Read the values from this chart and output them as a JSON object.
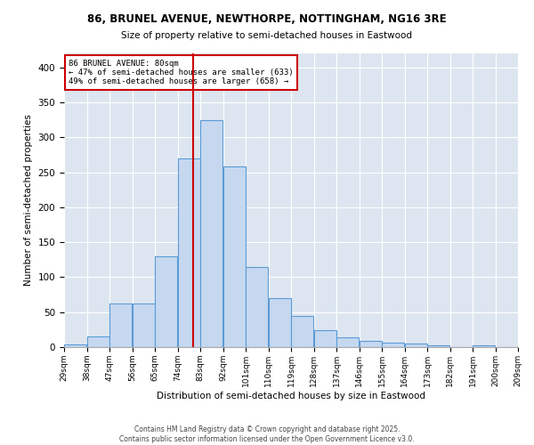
{
  "title_line1": "86, BRUNEL AVENUE, NEWTHORPE, NOTTINGHAM, NG16 3RE",
  "title_line2": "Size of property relative to semi-detached houses in Eastwood",
  "xlabel": "Distribution of semi-detached houses by size in Eastwood",
  "ylabel": "Number of semi-detached properties",
  "footer_line1": "Contains HM Land Registry data © Crown copyright and database right 2025.",
  "footer_line2": "Contains public sector information licensed under the Open Government Licence v3.0.",
  "annotation_title": "86 BRUNEL AVENUE: 80sqm",
  "annotation_line1": "← 47% of semi-detached houses are smaller (633)",
  "annotation_line2": "49% of semi-detached houses are larger (658) →",
  "property_size": 80,
  "bin_edges": [
    29,
    38,
    47,
    56,
    65,
    74,
    83,
    92,
    101,
    110,
    119,
    128,
    137,
    146,
    155,
    164,
    173,
    182,
    191,
    200,
    209
  ],
  "bin_labels": [
    "29sqm",
    "38sqm",
    "47sqm",
    "56sqm",
    "65sqm",
    "74sqm",
    "83sqm",
    "92sqm",
    "101sqm",
    "110sqm",
    "119sqm",
    "128sqm",
    "137sqm",
    "146sqm",
    "155sqm",
    "164sqm",
    "173sqm",
    "182sqm",
    "191sqm",
    "200sqm",
    "209sqm"
  ],
  "counts": [
    4,
    15,
    62,
    62,
    130,
    270,
    325,
    258,
    115,
    70,
    45,
    24,
    14,
    9,
    6,
    5,
    3,
    0,
    3,
    0
  ],
  "bar_facecolor": "#c5d8f0",
  "bar_edgecolor": "#5b9bd5",
  "redline_color": "#cc0000",
  "annotation_box_color": "#cc0000",
  "background_color": "#dde6f0",
  "grid_color": "#ffffff",
  "ylim": [
    0,
    420
  ],
  "yticks": [
    0,
    50,
    100,
    150,
    200,
    250,
    300,
    350,
    400
  ]
}
